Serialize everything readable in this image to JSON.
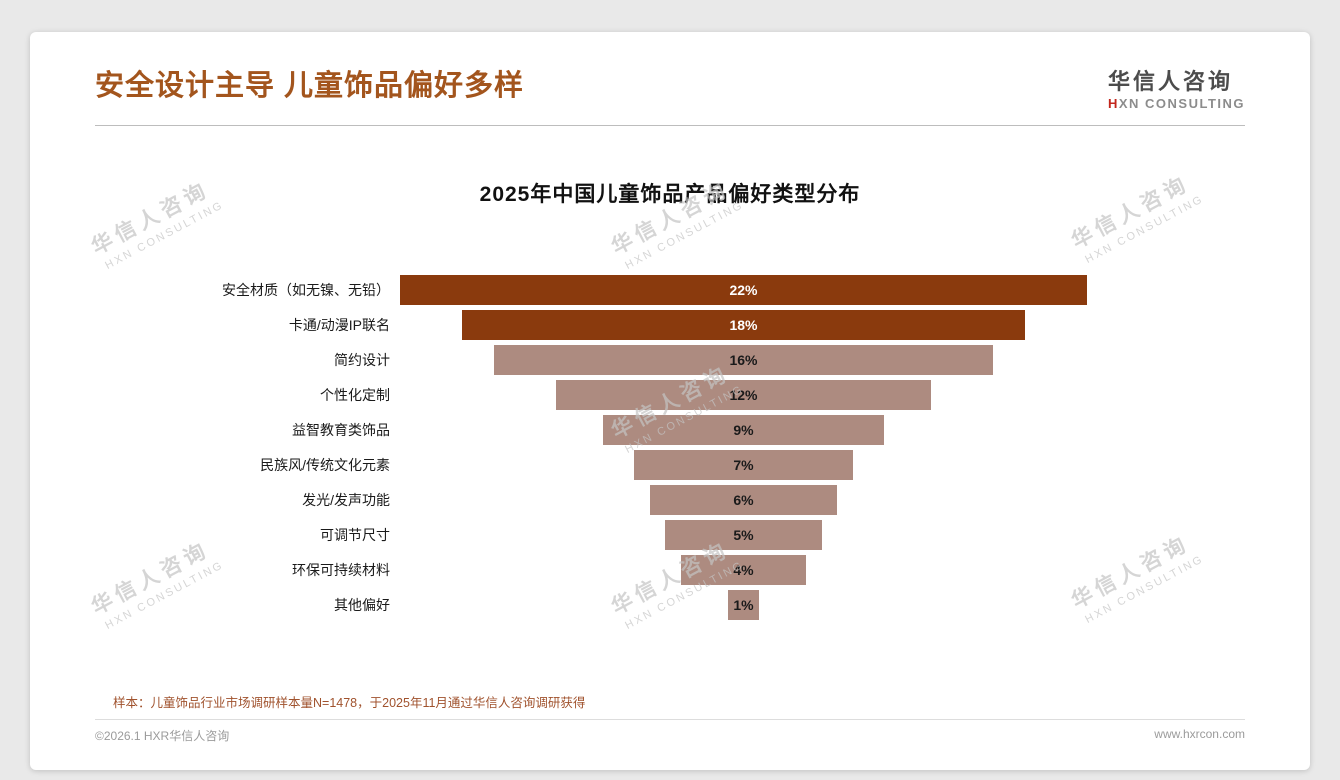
{
  "colors": {
    "accent": "#a3551d",
    "bar_dark": "#8a3a0d",
    "bar_light": "#ad8b80",
    "footnote_text": "#a0522d"
  },
  "header": {
    "title": "安全设计主导 儿童饰品偏好多样",
    "logo": {
      "name_cn": "华信人咨询",
      "name_en_first": "H",
      "name_en_rest": "XN CONSULTING"
    }
  },
  "watermark": {
    "line1": "华信人咨询",
    "line2": "HXN CONSULTING"
  },
  "chart_data": {
    "type": "bar",
    "variant": "centered-funnel",
    "orientation": "horizontal",
    "alignment": "center",
    "title": "2025年中国儿童饰品产品偏好类型分布",
    "categories": [
      "安全材质（如无镍、无铅）",
      "卡通/动漫IP联名",
      "简约设计",
      "个性化定制",
      "益智教育类饰品",
      "民族风/传统文化元素",
      "发光/发声功能",
      "可调节尺寸",
      "环保可持续材料",
      "其他偏好"
    ],
    "values": [
      22,
      18,
      16,
      12,
      9,
      7,
      6,
      5,
      4,
      1
    ],
    "value_labels": [
      "22%",
      "18%",
      "16%",
      "12%",
      "9%",
      "7%",
      "6%",
      "5%",
      "4%",
      "1%"
    ],
    "bar_colors": [
      "#8a3a0d",
      "#8a3a0d",
      "#ad8b80",
      "#ad8b80",
      "#ad8b80",
      "#ad8b80",
      "#ad8b80",
      "#ad8b80",
      "#ad8b80",
      "#ad8b80"
    ],
    "value_label_colors": [
      "#ffffff",
      "#ffffff",
      "#1a1a1a",
      "#1a1a1a",
      "#1a1a1a",
      "#1a1a1a",
      "#1a1a1a",
      "#1a1a1a",
      "#1a1a1a",
      "#1a1a1a"
    ],
    "xlim": [
      0,
      22
    ],
    "grid": false,
    "legend": false
  },
  "footnote": "样本：儿童饰品行业市场调研样本量N=1478，于2025年11月通过华信人咨询调研获得",
  "footer": {
    "left": "©2026.1 HXR华信人咨询",
    "right": "www.hxrcon.com"
  }
}
